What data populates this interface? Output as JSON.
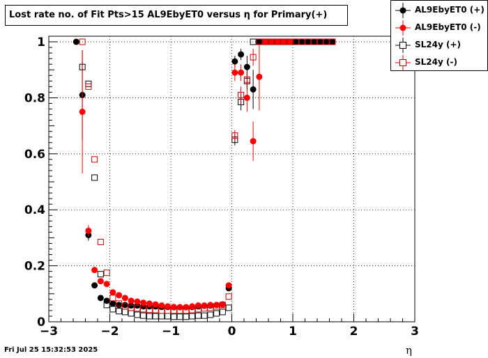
{
  "title": "Lost rate no. of Fit Pts>15 AL9EbyET0 versus η for Primary(+)",
  "footer": "Fri Jul 25 15:32:53 2025",
  "chart_data": {
    "type": "scatter",
    "xlabel": "η",
    "ylabel": "",
    "xlim": [
      -3,
      3
    ],
    "ylim": [
      0,
      1.02
    ],
    "xticks": [
      "−3",
      "−2",
      "−1",
      "0",
      "1",
      "2",
      "3"
    ],
    "yticks": [
      "0",
      "0.2",
      "0.4",
      "0.6",
      "0.8",
      "1"
    ],
    "grid": true,
    "legend_position": "top-right",
    "series": [
      {
        "name": "AL9EbyET0 (+)",
        "color": "#000000",
        "marker": "filled-circle",
        "x": [
          -2.55,
          -2.45,
          -2.35,
          -2.25,
          -2.15,
          -2.05,
          -1.95,
          -1.85,
          -1.75,
          -1.65,
          -1.55,
          -1.45,
          -1.35,
          -1.25,
          -1.15,
          -1.05,
          -0.95,
          -0.85,
          -0.75,
          -0.65,
          -0.55,
          -0.45,
          -0.35,
          -0.25,
          -0.15,
          -0.05,
          0.05,
          0.15,
          0.25,
          0.35,
          0.45,
          0.55,
          0.65,
          0.75,
          0.85,
          0.95,
          1.05,
          1.15,
          1.25,
          1.35,
          1.45,
          1.55,
          1.65
        ],
        "y": [
          1.0,
          0.81,
          0.31,
          0.13,
          0.085,
          0.075,
          0.065,
          0.06,
          0.06,
          0.058,
          0.058,
          0.055,
          0.055,
          0.055,
          0.053,
          0.053,
          0.052,
          0.052,
          0.052,
          0.053,
          0.055,
          0.057,
          0.058,
          0.06,
          0.062,
          0.12,
          0.93,
          0.955,
          0.91,
          0.83,
          1.0,
          1.0,
          1.0,
          1.0,
          1.0,
          1.0,
          1.0,
          1.0,
          1.0,
          1.0,
          1.0,
          1.0,
          1.0
        ],
        "yerr": [
          0,
          0.16,
          0.02,
          0.01,
          0,
          0,
          0,
          0,
          0,
          0,
          0,
          0,
          0,
          0,
          0,
          0,
          0,
          0,
          0,
          0,
          0,
          0,
          0,
          0,
          0,
          0.01,
          0.02,
          0.02,
          0.04,
          0.07,
          0,
          0,
          0,
          0,
          0,
          0,
          0,
          0,
          0,
          0,
          0,
          0,
          0
        ]
      },
      {
        "name": "AL9EbyET0 (-)",
        "color": "#ff0000",
        "marker": "filled-circle",
        "x": [
          -2.45,
          -2.35,
          -2.25,
          -2.15,
          -2.05,
          -1.95,
          -1.85,
          -1.75,
          -1.65,
          -1.55,
          -1.45,
          -1.35,
          -1.25,
          -1.15,
          -1.05,
          -0.95,
          -0.85,
          -0.75,
          -0.65,
          -0.55,
          -0.45,
          -0.35,
          -0.25,
          -0.15,
          -0.05,
          0.05,
          0.15,
          0.25,
          0.35,
          0.45,
          0.55,
          0.65,
          0.75,
          0.85,
          0.95
        ],
        "y": [
          0.75,
          0.325,
          0.185,
          0.145,
          0.135,
          0.105,
          0.095,
          0.085,
          0.075,
          0.072,
          0.068,
          0.065,
          0.062,
          0.058,
          0.055,
          0.053,
          0.052,
          0.052,
          0.055,
          0.058,
          0.058,
          0.06,
          0.06,
          0.062,
          0.13,
          0.89,
          0.89,
          0.8,
          0.645,
          0.875,
          1.0,
          1.0,
          1.0,
          1.0,
          1.0
        ],
        "yerr": [
          0.22,
          0.02,
          0.01,
          0,
          0,
          0,
          0,
          0,
          0,
          0,
          0,
          0,
          0,
          0,
          0,
          0,
          0,
          0,
          0,
          0,
          0,
          0,
          0,
          0,
          0.01,
          0.03,
          0.03,
          0.05,
          0.07,
          0.12,
          0,
          0,
          0,
          0,
          0
        ]
      },
      {
        "name": "SL24y (+)",
        "color": "#000000",
        "marker": "open-square",
        "x": [
          -2.45,
          -2.35,
          -2.25,
          -2.15,
          -2.05,
          -1.95,
          -1.85,
          -1.75,
          -1.65,
          -1.55,
          -1.45,
          -1.35,
          -1.25,
          -1.15,
          -1.05,
          -0.95,
          -0.85,
          -0.75,
          -0.65,
          -0.55,
          -0.45,
          -0.35,
          -0.25,
          -0.15,
          -0.05,
          0.05,
          0.15,
          0.25,
          0.35,
          0.45,
          0.55,
          0.65,
          0.75,
          0.85,
          0.95,
          1.05,
          1.15,
          1.25,
          1.35,
          1.45,
          1.55,
          1.65
        ],
        "y": [
          0.91,
          0.85,
          0.515,
          0.17,
          0.06,
          0.045,
          0.038,
          0.035,
          0.03,
          0.025,
          0.022,
          0.02,
          0.02,
          0.02,
          0.02,
          0.018,
          0.018,
          0.018,
          0.02,
          0.022,
          0.022,
          0.025,
          0.03,
          0.035,
          0.05,
          0.65,
          0.785,
          0.86,
          1.0,
          1.0,
          1.0,
          1.0,
          1.0,
          1.0,
          1.0,
          1.0,
          1.0,
          1.0,
          1.0,
          1.0,
          1.0,
          1.0
        ],
        "yerr": [
          0,
          0,
          0,
          0,
          0,
          0,
          0,
          0,
          0,
          0,
          0,
          0,
          0,
          0,
          0,
          0,
          0,
          0,
          0,
          0,
          0,
          0,
          0,
          0,
          0,
          0.02,
          0.03,
          0.03,
          0,
          0,
          0,
          0,
          0,
          0,
          0,
          0,
          0,
          0,
          0,
          0,
          0,
          0
        ]
      },
      {
        "name": "SL24y (-)",
        "color": "#cc0000",
        "marker": "open-square",
        "x": [
          -2.45,
          -2.35,
          -2.25,
          -2.15,
          -2.05,
          -1.95,
          -1.85,
          -1.75,
          -1.65,
          -1.55,
          -1.45,
          -1.35,
          -1.25,
          -1.15,
          -1.05,
          -0.95,
          -0.85,
          -0.75,
          -0.65,
          -0.55,
          -0.45,
          -0.35,
          -0.25,
          -0.15,
          -0.05,
          0.05,
          0.15,
          0.25,
          0.35,
          0.45,
          0.55,
          0.65,
          0.75,
          0.85,
          0.95,
          1.05,
          1.15,
          1.25,
          1.35,
          1.45,
          1.55,
          1.65
        ],
        "y": [
          1.0,
          0.84,
          0.58,
          0.285,
          0.175,
          0.085,
          0.065,
          0.055,
          0.05,
          0.048,
          0.045,
          0.043,
          0.042,
          0.04,
          0.04,
          0.04,
          0.04,
          0.04,
          0.042,
          0.045,
          0.048,
          0.05,
          0.055,
          0.06,
          0.09,
          0.665,
          0.81,
          0.865,
          0.945,
          1.0,
          1.0,
          1.0,
          1.0,
          1.0,
          1.0,
          1.0,
          1.0,
          1.0,
          1.0,
          1.0,
          1.0,
          1.0
        ],
        "yerr": [
          0,
          0,
          0,
          0,
          0,
          0,
          0,
          0,
          0,
          0,
          0,
          0,
          0,
          0,
          0,
          0,
          0,
          0,
          0,
          0,
          0,
          0,
          0,
          0,
          0,
          0.02,
          0.03,
          0.03,
          0.03,
          0,
          0,
          0,
          0,
          0,
          0,
          0,
          0,
          0,
          0,
          0,
          0,
          0
        ]
      }
    ]
  }
}
